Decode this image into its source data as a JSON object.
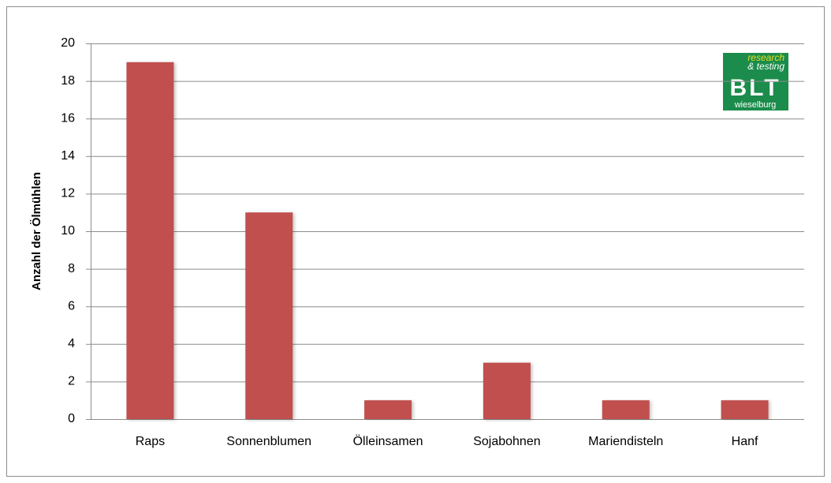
{
  "chart_data": {
    "type": "bar",
    "y_label": "Anzahl der Ölmühlen",
    "categories": [
      "Raps",
      "Sonnenblumen",
      "Ölleinsamen",
      "Sojabohnen",
      "Mariendisteln",
      "Hanf"
    ],
    "values": [
      19,
      11,
      1,
      3,
      1,
      1
    ],
    "color": "#c0504d",
    "ylim": [
      0,
      20
    ],
    "yticks": [
      0,
      2,
      4,
      6,
      8,
      10,
      12,
      14,
      16,
      18,
      20
    ],
    "grid": true
  },
  "logo": {
    "line1": "research",
    "line2": "& testing",
    "name": "BLT",
    "place": "wieselburg"
  }
}
